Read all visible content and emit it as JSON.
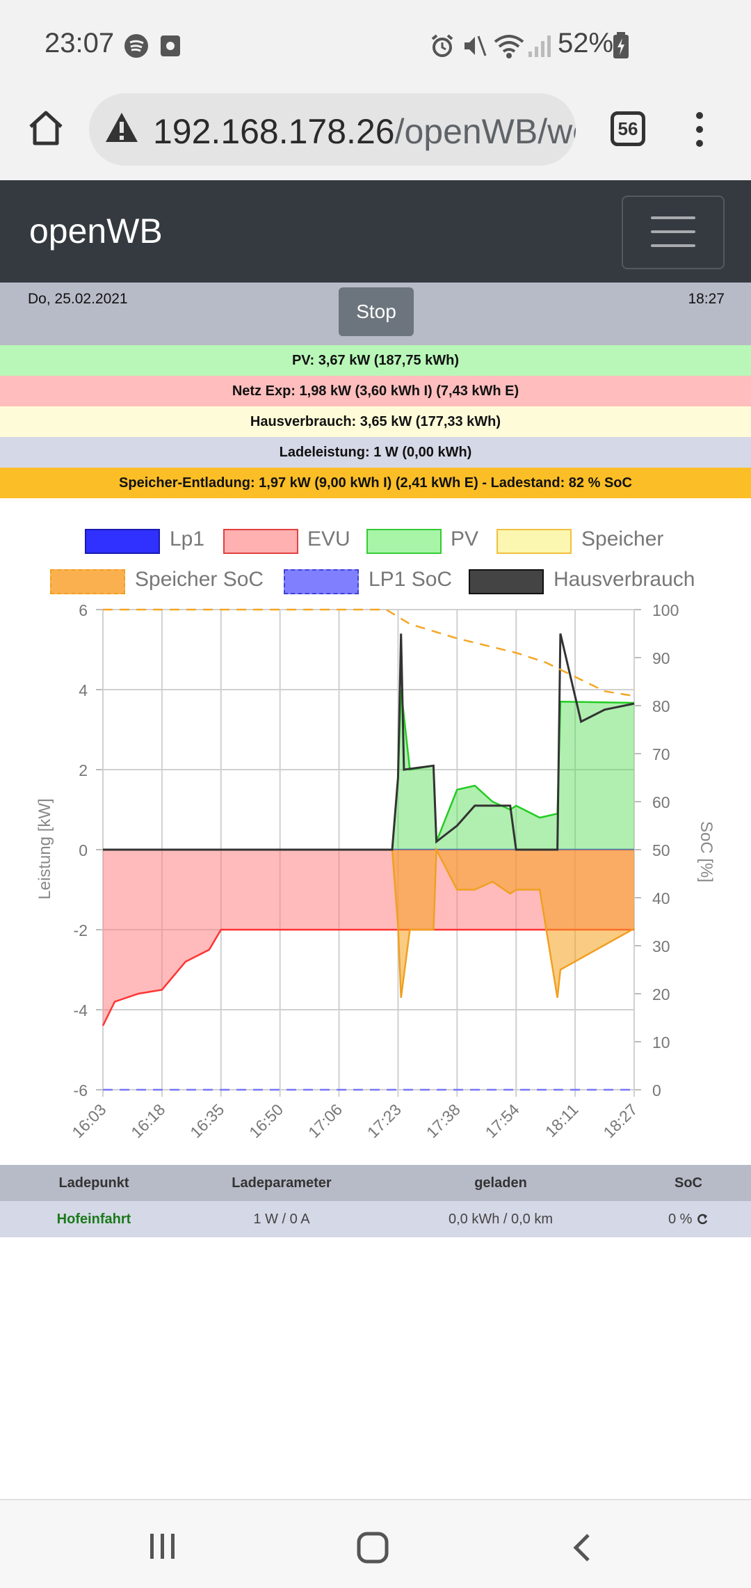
{
  "status_bar": {
    "time": "23:07",
    "battery": "52%"
  },
  "browser": {
    "url_host": "192.168.178.26",
    "url_path": "/openWB/we",
    "tab_count": "56"
  },
  "header": {
    "brand": "openWB"
  },
  "datebar": {
    "date": "Do, 25.02.2021",
    "time": "18:27",
    "stop_label": "Stop"
  },
  "info": {
    "pv": "PV: 3,67 kW (187,75 kWh)",
    "netz": "Netz Exp: 1,98 kW (3,60 kWh I) (7,43 kWh E)",
    "haus": "Hausverbrauch: 3,65 kW (177,33 kWh)",
    "lade": "Ladeleistung: 1 W (0,00 kWh)",
    "speicher": "Speicher-Entladung: 1,97 kW (9,00 kWh I) (2,41 kWh E) - Ladestand: 82 % SoC"
  },
  "colors": {
    "pv_row": "#b8f7b8",
    "netz_row": "#ffbdbd",
    "haus_row": "#fefbd8",
    "lade_row": "#d5d8e6",
    "speicher_row": "#fcbe27"
  },
  "chart_data": {
    "type": "area",
    "legend": [
      "Lp1",
      "EVU",
      "PV",
      "Speicher",
      "Speicher SoC",
      "LP1 SoC",
      "Hausverbrauch"
    ],
    "xlabel": "",
    "ylabel": "Leistung [kW]",
    "y2label": "SoC [%]",
    "x_ticks": [
      "16:03",
      "16:18",
      "16:35",
      "16:50",
      "17:06",
      "17:23",
      "17:38",
      "17:54",
      "18:11",
      "18:27"
    ],
    "y_ticks": [
      "6",
      "4",
      "2",
      "0",
      "-2",
      "-4",
      "-6"
    ],
    "y2_ticks": [
      "100",
      "90",
      "80",
      "70",
      "60",
      "50",
      "40",
      "30",
      "20",
      "10",
      "0"
    ],
    "ylim": [
      -6,
      6
    ],
    "y2lim": [
      0,
      100
    ],
    "series": [
      {
        "name": "Lp1",
        "color": "#2b2bff",
        "x": [
          0,
          9
        ],
        "values": [
          0,
          0
        ]
      },
      {
        "name": "EVU",
        "color": "#ff3333",
        "x": [
          0,
          0.2,
          0.6,
          1.0,
          1.4,
          1.8,
          2.0,
          5.0,
          9.0
        ],
        "values": [
          -4.4,
          -3.8,
          -3.6,
          -3.5,
          -2.8,
          -2.5,
          -2.0,
          -2.0,
          -2.0
        ]
      },
      {
        "name": "PV",
        "color": "#22cc22",
        "x": [
          0,
          4.9,
          5.0,
          5.05,
          5.2,
          5.6,
          5.65,
          6.0,
          6.3,
          6.6,
          6.9,
          7.0,
          7.4,
          7.7,
          7.75,
          9.0
        ],
        "values": [
          0,
          0,
          1.8,
          4.0,
          2.0,
          2.1,
          0.2,
          1.5,
          1.6,
          1.2,
          1.0,
          1.1,
          0.8,
          0.9,
          3.7,
          3.67
        ]
      },
      {
        "name": "Speicher",
        "color": "#f0a020",
        "x": [
          0,
          4.9,
          5.0,
          5.05,
          5.2,
          5.6,
          5.65,
          6.0,
          6.3,
          6.6,
          6.9,
          7.0,
          7.4,
          7.7,
          7.75,
          9.0
        ],
        "values": [
          0,
          0,
          -1.9,
          -3.7,
          -2.0,
          -2.0,
          0,
          -1.0,
          -1.0,
          -0.8,
          -1.1,
          -1.0,
          -1.0,
          -3.7,
          -3.0,
          -1.97
        ]
      },
      {
        "name": "Hausverbrauch",
        "color": "#333333",
        "x": [
          0,
          4.9,
          5.0,
          5.05,
          5.1,
          5.6,
          5.65,
          6.0,
          6.3,
          6.9,
          7.0,
          7.7,
          7.75,
          8.1,
          8.5,
          9.0
        ],
        "values": [
          0,
          0,
          1.8,
          5.4,
          2.0,
          2.1,
          0.2,
          0.6,
          1.1,
          1.1,
          0.0,
          0.0,
          5.4,
          3.2,
          3.5,
          3.65
        ]
      },
      {
        "name": "Speicher SoC",
        "color": "#f5a623",
        "x": [
          0,
          4.8,
          5.2,
          6.0,
          7.0,
          7.5,
          8.0,
          8.5,
          9.0
        ],
        "values": [
          100,
          100,
          97,
          94,
          91,
          89,
          86,
          83,
          82
        ],
        "axis": "y2"
      },
      {
        "name": "LP1 SoC",
        "color": "#7777ff",
        "x": [
          0,
          9
        ],
        "values": [
          0,
          0
        ],
        "axis": "y2"
      }
    ]
  },
  "table": {
    "headers": [
      "Ladepunkt",
      "Ladeparameter",
      "geladen",
      "SoC"
    ],
    "row": {
      "name": "Hofeinfahrt",
      "param": "1 W / 0 A",
      "geladen": "0,0 kWh / 0,0 km",
      "soc": "0 %"
    }
  }
}
